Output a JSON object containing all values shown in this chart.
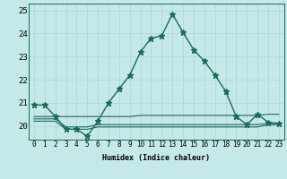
{
  "xlabel": "Humidex (Indice chaleur)",
  "background_color": "#c5e8e8",
  "grid_color": "#b0d4d4",
  "line_color": "#1a6b5a",
  "xlim_min": -0.5,
  "xlim_max": 23.5,
  "ylim_min": 19.4,
  "ylim_max": 25.3,
  "x_ticks": [
    0,
    1,
    2,
    3,
    4,
    5,
    6,
    7,
    8,
    9,
    10,
    11,
    12,
    13,
    14,
    15,
    16,
    17,
    18,
    19,
    20,
    21,
    22,
    23
  ],
  "y_ticks": [
    20,
    21,
    22,
    23,
    24,
    25
  ],
  "main_series": [
    20.9,
    20.9,
    20.4,
    19.85,
    19.85,
    19.55,
    20.2,
    21.0,
    21.6,
    22.2,
    23.2,
    23.8,
    23.9,
    24.85,
    24.05,
    23.3,
    22.8,
    22.2,
    21.5,
    20.4,
    20.05,
    20.5,
    20.15,
    20.1
  ],
  "flat_series": [
    [
      20.4,
      20.4,
      20.4,
      20.4,
      20.4,
      20.4,
      20.4,
      20.4,
      20.4,
      20.4,
      20.45,
      20.45,
      20.45,
      20.45,
      20.45,
      20.45,
      20.45,
      20.45,
      20.45,
      20.45,
      20.45,
      20.45,
      20.5,
      20.5
    ],
    [
      20.3,
      20.3,
      20.3,
      19.95,
      19.95,
      19.95,
      20.05,
      20.05,
      20.05,
      20.05,
      20.05,
      20.05,
      20.05,
      20.05,
      20.05,
      20.05,
      20.05,
      20.05,
      20.05,
      20.05,
      20.05,
      20.05,
      20.1,
      20.1
    ],
    [
      20.2,
      20.2,
      20.2,
      19.85,
      19.85,
      19.85,
      19.95,
      19.95,
      19.95,
      19.95,
      19.95,
      19.95,
      19.95,
      19.95,
      19.95,
      19.95,
      19.95,
      19.95,
      19.95,
      19.95,
      19.95,
      19.95,
      20.05,
      20.05
    ]
  ],
  "xlabel_fontsize": 6.0,
  "tick_fontsize": 5.5
}
